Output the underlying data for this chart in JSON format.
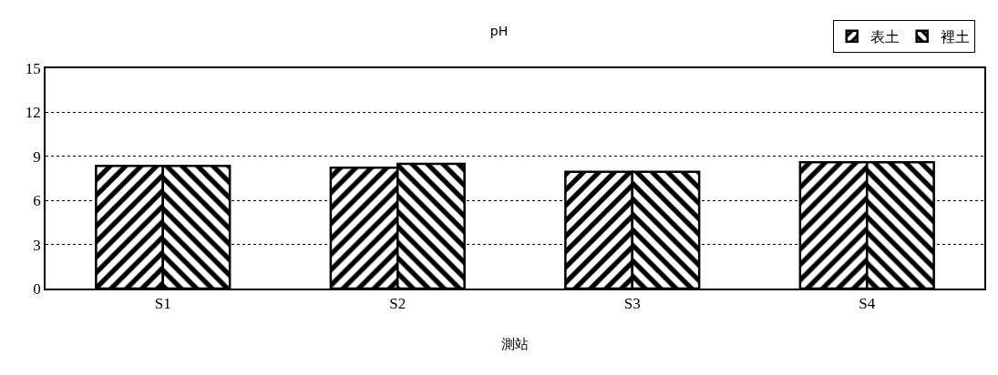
{
  "chart_data": {
    "type": "bar",
    "title": "pH",
    "xlabel": "測站",
    "categories": [
      "S1",
      "S2",
      "S3",
      "S4"
    ],
    "series": [
      {
        "name": "表土",
        "color": "#000000",
        "values": [
          8.35,
          8.23,
          7.95,
          8.6
        ]
      },
      {
        "name": "裡土",
        "color": "#000000",
        "values": [
          8.35,
          8.49,
          7.95,
          8.6
        ]
      }
    ],
    "ylim": [
      0,
      15
    ],
    "yticks": [
      0,
      3,
      6,
      9,
      12,
      15
    ],
    "grid": "y",
    "legend": "top right"
  }
}
